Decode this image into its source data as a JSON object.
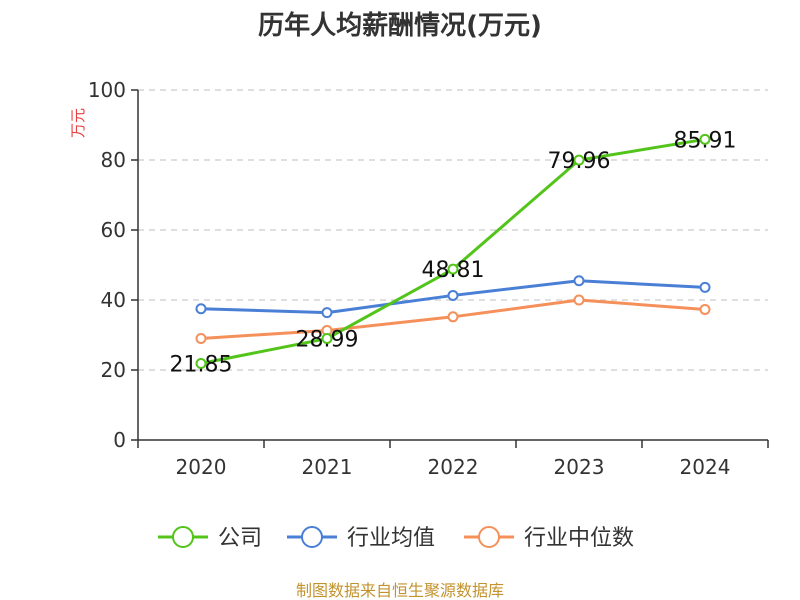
{
  "chart_data": {
    "type": "line",
    "title": "历年人均薪酬情况(万元)",
    "ylabel": "万元",
    "xlabel": "",
    "x": [
      "2020",
      "2021",
      "2022",
      "2023",
      "2024"
    ],
    "ylim": [
      0,
      100
    ],
    "yticks": [
      "0",
      "20",
      "40",
      "60",
      "80",
      "100"
    ],
    "grid": true,
    "legend_position": "bottom",
    "series": [
      {
        "name": "公司",
        "color": "#52c41a",
        "values": [
          21.85,
          28.99,
          48.81,
          79.96,
          85.91
        ],
        "labels": [
          "21.85",
          "28.99",
          "48.81",
          "79.96",
          "85.91"
        ]
      },
      {
        "name": "行业均值",
        "color": "#4a7fd6",
        "values": [
          37.5,
          36.4,
          41.3,
          45.5,
          43.6
        ]
      },
      {
        "name": "行业中位数",
        "color": "#f5905a",
        "values": [
          29.0,
          31.3,
          35.2,
          40.0,
          37.3
        ]
      }
    ],
    "source": "制图数据来自恒生聚源数据库"
  }
}
